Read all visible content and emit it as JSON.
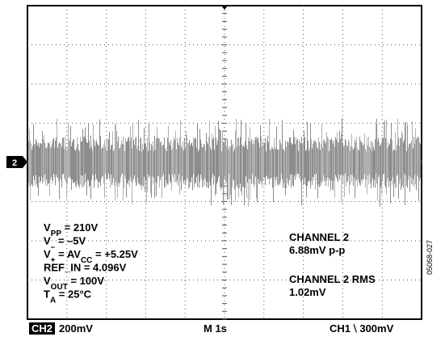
{
  "chart_data": {
    "type": "line",
    "title": "",
    "xlabel": "",
    "ylabel": "",
    "grid": true,
    "divisions": {
      "x": 10,
      "y": 8
    },
    "series": [
      {
        "channel": "2",
        "trace_level_div": 4.0,
        "band_div": 0.28,
        "spike_div": 0.85,
        "color": "#9a9a9a"
      }
    ],
    "channel_marker": "2",
    "settings": {
      "ch2_badge": "CH2",
      "ch2_scale": "200mV",
      "timebase": "M 1s",
      "trigger": "CH1 ⧵ 300mV"
    },
    "trigger_symbol": "┐└",
    "conditions": [
      {
        "main": "V",
        "sub": "PP",
        "rest": " = 210V"
      },
      {
        "main": "V",
        "sub": "–",
        "rest": " = –5V"
      },
      {
        "main": "V",
        "sub": "+",
        "rest": " = AV",
        "sub2": "CC",
        "rest2": " = +5.25V"
      },
      {
        "main": "REF_IN = 4.096V",
        "sub": "",
        "rest": ""
      },
      {
        "main": "V",
        "sub": "OUT",
        "rest": " = 100V"
      },
      {
        "main": "T",
        "sub": "A",
        "rest": " = 25°C"
      }
    ],
    "measurements": [
      {
        "label": "CHANNEL 2",
        "value": "6.88mV p-p"
      },
      {
        "label": "CHANNEL 2 RMS",
        "value": "1.02mV"
      }
    ],
    "figure_id": "05068-027"
  }
}
